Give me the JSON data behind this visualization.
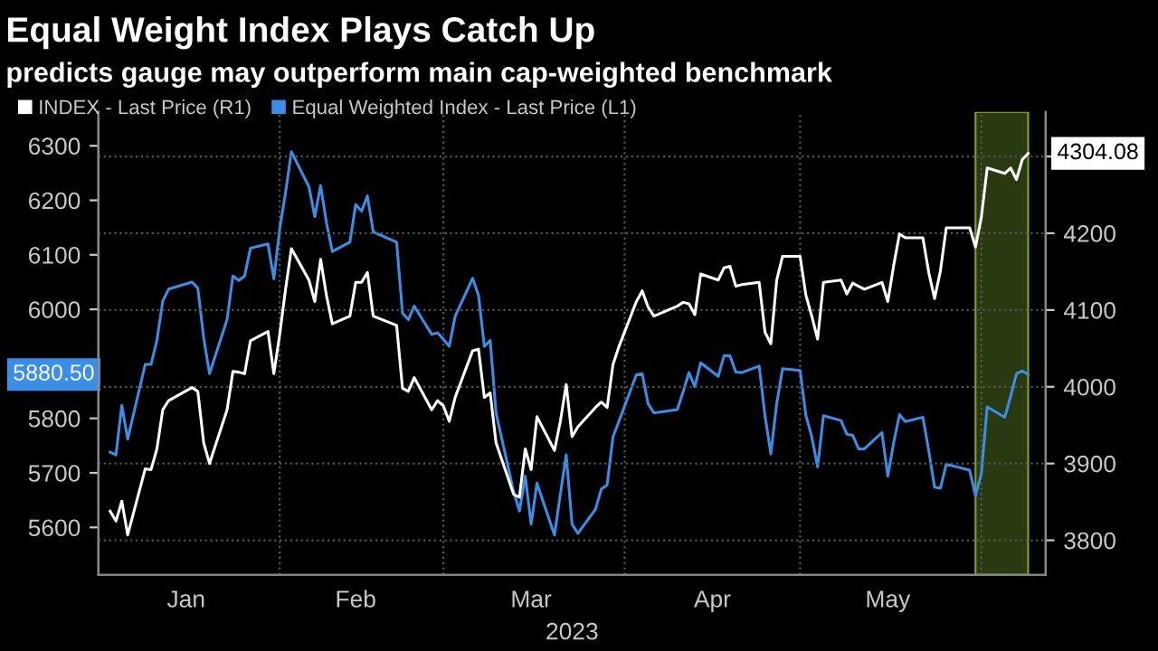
{
  "chart_data": {
    "type": "line",
    "title": "Equal Weight Index Plays Catch Up",
    "subtitle": "predicts gauge may outperform main cap-weighted benchmark",
    "xlabel": "2023",
    "x": [
      "2023-01-03",
      "2023-01-04",
      "2023-01-05",
      "2023-01-06",
      "2023-01-09",
      "2023-01-10",
      "2023-01-11",
      "2023-01-12",
      "2023-01-13",
      "2023-01-17",
      "2023-01-18",
      "2023-01-19",
      "2023-01-20",
      "2023-01-23",
      "2023-01-24",
      "2023-01-25",
      "2023-01-26",
      "2023-01-27",
      "2023-01-30",
      "2023-01-31",
      "2023-02-01",
      "2023-02-02",
      "2023-02-03",
      "2023-02-06",
      "2023-02-07",
      "2023-02-08",
      "2023-02-09",
      "2023-02-10",
      "2023-02-13",
      "2023-02-14",
      "2023-02-15",
      "2023-02-16",
      "2023-02-17",
      "2023-02-21",
      "2023-02-22",
      "2023-02-23",
      "2023-02-24",
      "2023-02-27",
      "2023-02-28",
      "2023-03-01",
      "2023-03-02",
      "2023-03-03",
      "2023-03-06",
      "2023-03-07",
      "2023-03-08",
      "2023-03-09",
      "2023-03-10",
      "2023-03-13",
      "2023-03-14",
      "2023-03-15",
      "2023-03-16",
      "2023-03-17",
      "2023-03-20",
      "2023-03-21",
      "2023-03-22",
      "2023-03-23",
      "2023-03-24",
      "2023-03-27",
      "2023-03-28",
      "2023-03-29",
      "2023-03-30",
      "2023-03-31",
      "2023-04-03",
      "2023-04-04",
      "2023-04-05",
      "2023-04-06",
      "2023-04-10",
      "2023-04-11",
      "2023-04-12",
      "2023-04-13",
      "2023-04-14",
      "2023-04-17",
      "2023-04-18",
      "2023-04-19",
      "2023-04-20",
      "2023-04-21",
      "2023-04-24",
      "2023-04-25",
      "2023-04-26",
      "2023-04-27",
      "2023-04-28",
      "2023-05-01",
      "2023-05-02",
      "2023-05-03",
      "2023-05-04",
      "2023-05-05",
      "2023-05-08",
      "2023-05-09",
      "2023-05-10",
      "2023-05-11",
      "2023-05-12",
      "2023-05-15",
      "2023-05-16",
      "2023-05-17",
      "2023-05-18",
      "2023-05-19",
      "2023-05-22",
      "2023-05-23",
      "2023-05-24",
      "2023-05-25",
      "2023-05-26",
      "2023-05-30",
      "2023-05-31",
      "2023-06-01",
      "2023-06-02",
      "2023-06-05",
      "2023-06-06",
      "2023-06-07",
      "2023-06-08",
      "2023-06-09"
    ],
    "series": [
      {
        "name": "INDEX - Last Price (R1)",
        "color": "#ffffff",
        "axis": "y2",
        "values": [
          3838,
          3825,
          3851,
          3807,
          3893,
          3892,
          3919,
          3970,
          3982,
          3999,
          3994,
          3927,
          3900,
          3970,
          4020,
          4019,
          4017,
          4060,
          4072,
          4017,
          4068,
          4127,
          4180,
          4139,
          4111,
          4166,
          4119,
          4082,
          4092,
          4136,
          4136,
          4149,
          4092,
          4080,
          3998,
          3994,
          4012,
          3970,
          3982,
          3975,
          3955,
          3986,
          4047,
          4049,
          3986,
          3992,
          3927,
          3860,
          3856,
          3919,
          3892,
          3961,
          3917,
          3955,
          4003,
          3935,
          3948,
          3973,
          3980,
          3973,
          4029,
          4052,
          4111,
          4125,
          4104,
          4092,
          4105,
          4110,
          4108,
          4094,
          4147,
          4139,
          4155,
          4157,
          4131,
          4133,
          4136,
          4071,
          4056,
          4139,
          4170,
          4170,
          4119,
          4092,
          4062,
          4136,
          4139,
          4121,
          4135,
          4131,
          4127,
          4136,
          4111,
          4158,
          4199,
          4194,
          4194,
          4149,
          4115,
          4151,
          4207,
          4207,
          4182,
          4221,
          4285,
          4278,
          4285,
          4270,
          4296,
          4304.08
        ]
      },
      {
        "name": "Equal Weighted Index - Last Price (L1)",
        "color": "#3a8ee6",
        "values": [
          5738,
          5733,
          5824,
          5762,
          5899,
          5899,
          5943,
          6015,
          6037,
          6050,
          6039,
          5948,
          5882,
          5981,
          6061,
          6053,
          6061,
          6112,
          6120,
          6056,
          6147,
          6214,
          6289,
          6225,
          6170,
          6227,
          6159,
          6106,
          6123,
          6192,
          6180,
          6208,
          6142,
          6123,
          5993,
          5981,
          6006,
          5954,
          5957,
          5945,
          5932,
          5987,
          6057,
          6026,
          5932,
          5943,
          5810,
          5666,
          5630,
          5694,
          5606,
          5681,
          5586,
          5661,
          5733,
          5606,
          5589,
          5633,
          5670,
          5678,
          5766,
          5794,
          5880,
          5882,
          5827,
          5810,
          5816,
          5849,
          5884,
          5858,
          5902,
          5877,
          5915,
          5915,
          5885,
          5884,
          5896,
          5805,
          5735,
          5827,
          5891,
          5888,
          5805,
          5766,
          5711,
          5805,
          5796,
          5771,
          5769,
          5744,
          5744,
          5774,
          5694,
          5755,
          5807,
          5794,
          5802,
          5741,
          5674,
          5672,
          5716,
          5705,
          5658,
          5699,
          5821,
          5802,
          5840,
          5882,
          5887,
          5880.5
        ]
      }
    ],
    "xlim": [
      "2023-01-01",
      "2023-06-12"
    ],
    "xticks": [
      {
        "value": "2023-01-16",
        "label": "Jan"
      },
      {
        "value": "2023-02-14",
        "label": "Feb"
      },
      {
        "value": "2023-03-16",
        "label": "Mar"
      },
      {
        "value": "2023-04-16",
        "label": "Apr"
      },
      {
        "value": "2023-05-16",
        "label": "May"
      }
    ],
    "ylim": [
      5513,
      6362
    ],
    "yticks": [
      5600,
      5700,
      5800,
      {
        "value": 5900,
        "label": null
      },
      6000,
      6100,
      6200,
      6300
    ],
    "y2lim": [
      3755,
      4358
    ],
    "y2ticks": [
      3800,
      3900,
      4000,
      4100,
      4200,
      {
        "value": 4300,
        "label": null
      }
    ],
    "ref_lines": [
      {
        "axis": "x",
        "value": "2023-02-01",
        "color": "#555555",
        "line_style": "dotted"
      },
      {
        "axis": "x",
        "value": "2023-03-01",
        "color": "#555555",
        "line_style": "dotted"
      },
      {
        "axis": "x",
        "value": "2023-04-01",
        "color": "#555555",
        "line_style": "dotted"
      },
      {
        "axis": "x",
        "value": "2023-05-01",
        "color": "#555555",
        "line_style": "dotted"
      },
      {
        "axis": "x",
        "value": "2023-06-01",
        "color": "#555555",
        "line_style": "dotted"
      }
    ],
    "bands": [
      {
        "axis": "x",
        "from": "2023-05-31",
        "to": "2023-06-09",
        "color": "#2a3a10"
      }
    ],
    "annotations": [
      "4304.08",
      "5880.50"
    ],
    "grid": "y",
    "legend": "top left",
    "line_style": "solid",
    "marker": "none"
  }
}
